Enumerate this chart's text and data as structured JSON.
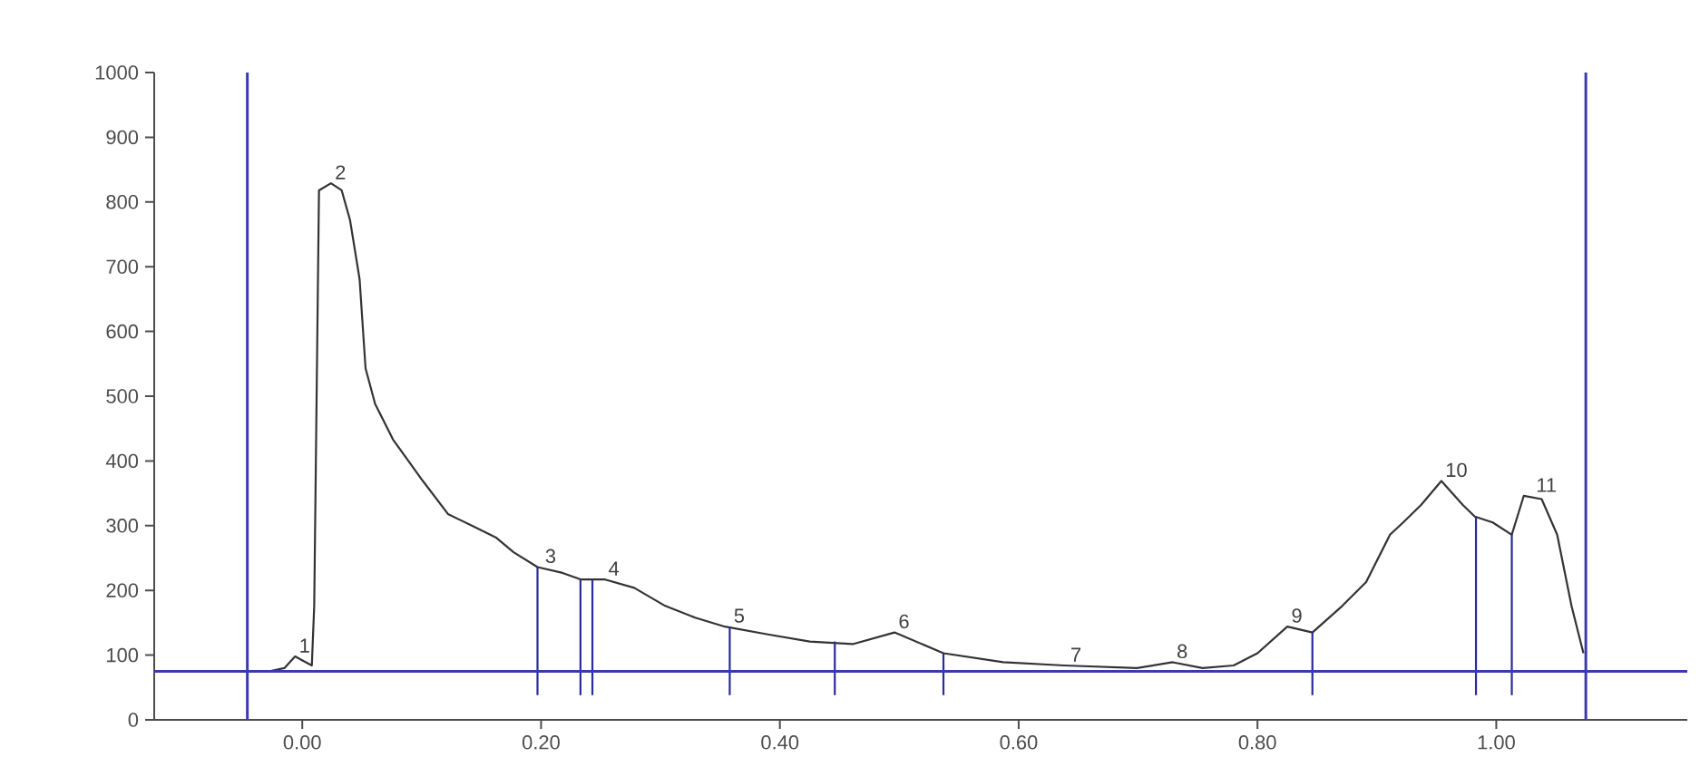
{
  "chart_data": {
    "type": "line",
    "marker": "none",
    "xlim": [
      -0.124,
      1.16
    ],
    "ylim": [
      0,
      1000
    ],
    "xticks": [
      {
        "value": 0,
        "label": "0.00"
      },
      {
        "value": 0.2,
        "label": "0.20"
      },
      {
        "value": 0.4,
        "label": "0.40"
      },
      {
        "value": 0.6,
        "label": "0.60"
      },
      {
        "value": 0.8,
        "label": "0.80"
      },
      {
        "value": 1.0,
        "label": "1.00"
      }
    ],
    "yticks": [
      0,
      100,
      200,
      300,
      400,
      500,
      600,
      700,
      800,
      900,
      1000
    ],
    "series": [
      {
        "color": "#333333",
        "x": [
          -0.028,
          -0.015,
          -0.006,
          0.003,
          0.008,
          0.01,
          0.014,
          0.024,
          0.033,
          0.04,
          0.048,
          0.053,
          0.061,
          0.076,
          0.101,
          0.122,
          0.142,
          0.162,
          0.177,
          0.197,
          0.218,
          0.233,
          0.253,
          0.278,
          0.304,
          0.329,
          0.354,
          0.39,
          0.425,
          0.461,
          0.496,
          0.537,
          0.587,
          0.638,
          0.699,
          0.729,
          0.754,
          0.78,
          0.8,
          0.825,
          0.846,
          0.871,
          0.891,
          0.911,
          0.922,
          0.937,
          0.954,
          0.972,
          0.982,
          0.997,
          1.013,
          1.023,
          1.038,
          1.051,
          1.063,
          1.073
        ],
        "values": [
          75,
          80,
          98,
          89,
          84,
          176,
          818,
          829,
          818,
          772,
          681,
          543,
          488,
          433,
          369,
          318,
          300,
          282,
          259,
          236,
          227,
          217,
          217,
          204,
          176,
          158,
          144,
          132,
          121,
          117,
          135,
          103,
          89,
          84,
          80,
          89,
          80,
          84,
          103,
          144,
          135,
          176,
          213,
          286,
          305,
          332,
          369,
          332,
          314,
          305,
          286,
          346,
          341,
          286,
          176,
          103
        ]
      },
      {
        "color": "#2b2b9a",
        "x": [
          0.197,
          0.197,
          null,
          0.233,
          0.233,
          null,
          0.243,
          0.243,
          null,
          0.358,
          0.358,
          null,
          0.446,
          0.446,
          null,
          0.537,
          0.537,
          null,
          0.846,
          0.846,
          null,
          0.983,
          0.983,
          null,
          1.013,
          1.013
        ],
        "values": [
          38,
          236,
          null,
          38,
          217,
          null,
          38,
          217,
          null,
          38,
          144,
          null,
          38,
          121,
          null,
          38,
          103,
          null,
          38,
          135,
          null,
          38,
          314,
          null,
          38,
          286
        ]
      }
    ],
    "ref_lines": [
      {
        "axis": "x",
        "value": -0.046,
        "color": "#3a3aa8"
      },
      {
        "axis": "x",
        "value": 1.075,
        "color": "#3a3aa8"
      },
      {
        "axis": "y",
        "value": 75,
        "color": "#3a3aa8"
      }
    ],
    "annotations": [
      {
        "text": "1",
        "x": -0.006,
        "y": 98
      },
      {
        "text": "2",
        "x": 0.024,
        "y": 829
      },
      {
        "text": "3",
        "x": 0.2,
        "y": 236
      },
      {
        "text": "4",
        "x": 0.253,
        "y": 217
      },
      {
        "text": "5",
        "x": 0.358,
        "y": 144
      },
      {
        "text": "6",
        "x": 0.496,
        "y": 135
      },
      {
        "text": "7",
        "x": 0.64,
        "y": 84
      },
      {
        "text": "8",
        "x": 0.729,
        "y": 89
      },
      {
        "text": "9",
        "x": 0.825,
        "y": 144
      },
      {
        "text": "10",
        "x": 0.954,
        "y": 369
      },
      {
        "text": "11",
        "x": 1.03,
        "y": 346
      }
    ]
  }
}
